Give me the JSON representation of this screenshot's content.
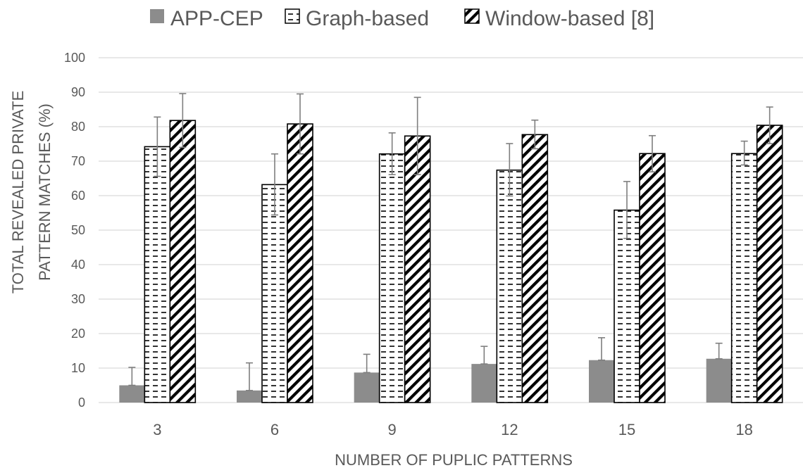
{
  "chart_data": {
    "type": "bar",
    "categories": [
      "3",
      "6",
      "9",
      "12",
      "15",
      "18"
    ],
    "series": [
      {
        "name": "APP-CEP",
        "values": [
          5,
          3.5,
          8.7,
          11.2,
          12.3,
          12.7
        ],
        "err_low": [
          5,
          3.5,
          8.7,
          11.2,
          12.3,
          12.7
        ],
        "err_high": [
          10.2,
          11.5,
          14,
          16.3,
          18.8,
          17.2
        ]
      },
      {
        "name": "Graph-based",
        "values": [
          74.2,
          63.2,
          72.1,
          67.4,
          55.8,
          72.2
        ],
        "err_low": [
          65.6,
          54.4,
          66.1,
          59.9,
          47.6,
          68.9
        ],
        "err_high": [
          82.8,
          72.1,
          78.2,
          75.1,
          64.1,
          75.8
        ]
      },
      {
        "name": "Window-based [8]",
        "values": [
          81.8,
          80.8,
          77.3,
          77.7,
          72.2,
          80.4
        ],
        "err_low": [
          74,
          72.1,
          66.1,
          73.6,
          66.9,
          75.1
        ],
        "err_high": [
          89.6,
          89.5,
          88.5,
          81.9,
          77.4,
          85.7
        ]
      }
    ],
    "ylim": [
      0,
      100
    ],
    "yticks": [
      "0",
      "10",
      "20",
      "30",
      "40",
      "50",
      "60",
      "70",
      "80",
      "90",
      "100"
    ],
    "ylabel_line1": "TOTAL REVEALED PRIVATE",
    "ylabel_line2": "PATTERN MATCHES (%)",
    "xlabel": "NUMBER OF PUPLIC PATTERNS",
    "grid": true,
    "legend_position": "top",
    "colors": {
      "app_cep": "#8c8c8c",
      "grid": "#d9d9d9",
      "text": "#595959",
      "error_bar": "#7f7f7f",
      "bar_outline": "#000000"
    }
  }
}
